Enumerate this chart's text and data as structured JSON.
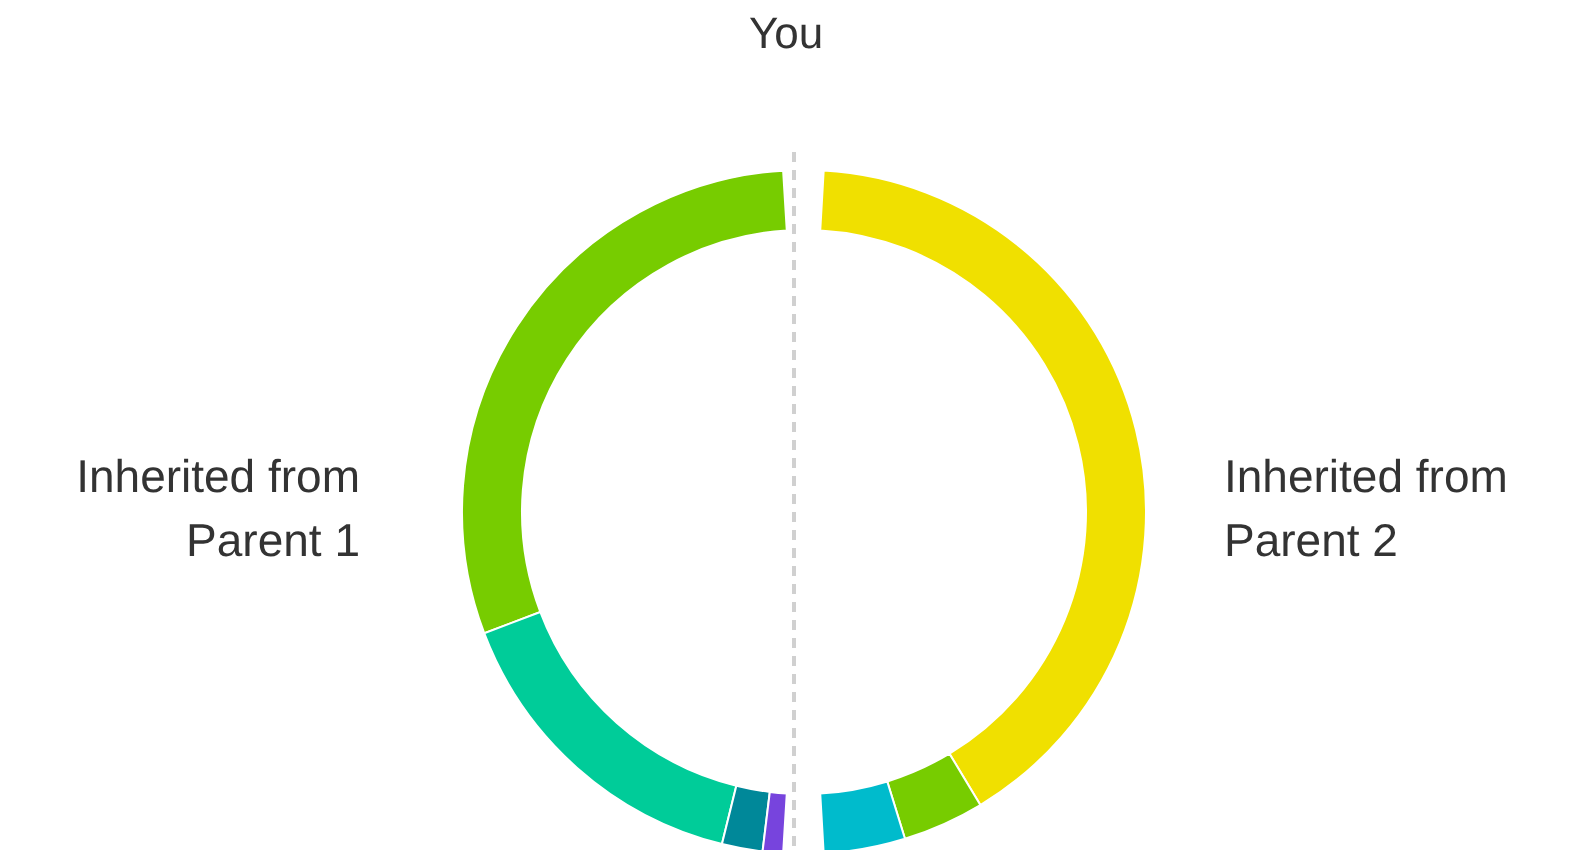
{
  "chart_data": [
    {
      "type": "donut",
      "title": "Inherited from Parent 1",
      "annotations": [
        "You"
      ],
      "categories": [
        null,
        null,
        null,
        null
      ],
      "values": [
        62,
        32,
        4,
        2
      ],
      "colors": [
        "#77cc00",
        "#00cc99",
        "#008899",
        "#7744dd"
      ]
    },
    {
      "type": "donut",
      "title": "Inherited from Parent 2",
      "categories": [
        null,
        null,
        null
      ],
      "values": [
        84,
        8,
        8
      ],
      "colors": [
        "#f0e000",
        "#77cc00",
        "#00bbcc"
      ]
    }
  ]
}
